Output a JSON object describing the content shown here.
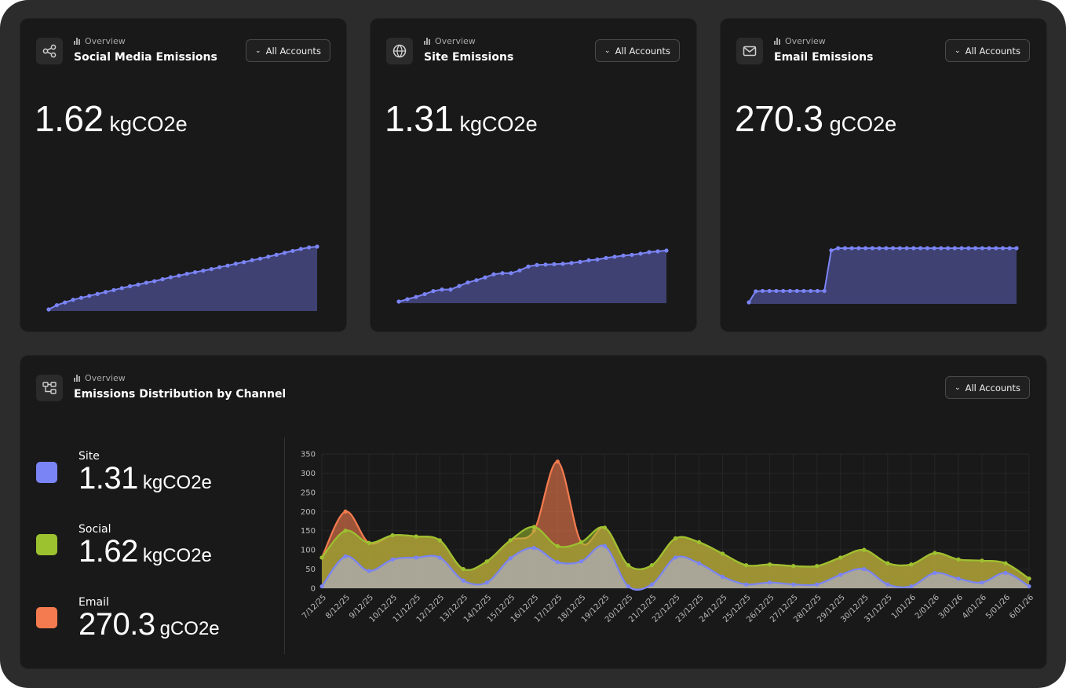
{
  "cards": [
    {
      "id": "social",
      "eyebrow": "Overview",
      "title": "Social Media Emissions",
      "button": "All Accounts",
      "value": "1.62",
      "unit": "kgCO2e",
      "icon": "share-icon",
      "spark": [
        0,
        0.11,
        0.18,
        0.25,
        0.3,
        0.35,
        0.4,
        0.45,
        0.5,
        0.55,
        0.6,
        0.64,
        0.69,
        0.73,
        0.78,
        0.83,
        0.87,
        0.92,
        0.96,
        1.0,
        1.04,
        1.09,
        1.13,
        1.18,
        1.22,
        1.27,
        1.31,
        1.36,
        1.41,
        1.46,
        1.51,
        1.56,
        1.6,
        1.62
      ]
    },
    {
      "id": "site",
      "eyebrow": "Overview",
      "title": "Site Emissions",
      "button": "All Accounts",
      "value": "1.31",
      "unit": "kgCO2e",
      "icon": "globe-icon",
      "spark": [
        0,
        0.06,
        0.12,
        0.19,
        0.27,
        0.31,
        0.31,
        0.4,
        0.49,
        0.55,
        0.62,
        0.7,
        0.73,
        0.73,
        0.8,
        0.9,
        0.94,
        0.95,
        0.96,
        0.97,
        0.99,
        1.02,
        1.06,
        1.08,
        1.12,
        1.15,
        1.18,
        1.2,
        1.23,
        1.27,
        1.29,
        1.31
      ]
    },
    {
      "id": "email",
      "eyebrow": "Overview",
      "title": "Email Emissions",
      "button": "All Accounts",
      "value": "270.3",
      "unit": "gCO2e",
      "icon": "mail-icon",
      "spark": [
        0,
        55,
        57,
        57,
        57,
        57,
        57,
        57,
        57,
        57,
        57,
        57,
        259,
        270,
        270,
        270,
        270,
        270,
        270,
        270,
        270,
        270,
        270,
        270,
        270,
        270,
        270,
        270,
        270,
        270,
        270,
        270,
        270,
        270,
        270,
        270,
        270,
        270,
        270,
        270
      ]
    }
  ],
  "distribution": {
    "eyebrow": "Overview",
    "title": "Emissions Distribution by Channel",
    "button": "All Accounts",
    "icon": "flow-icon",
    "legend": [
      {
        "label": "Site",
        "value": "1.31",
        "unit": "kgCO2e",
        "color": "#7b84f5"
      },
      {
        "label": "Social",
        "value": "1.62",
        "unit": "kgCO2e",
        "color": "#9cc22f"
      },
      {
        "label": "Email",
        "value": "270.3",
        "unit": "gCO2e",
        "color": "#f47b4f"
      }
    ]
  },
  "chart_data": {
    "type": "area",
    "title": "",
    "xlabel": "",
    "ylabel": "",
    "ylim": [
      0,
      350
    ],
    "yticks": [
      0,
      50,
      100,
      150,
      200,
      250,
      300,
      350
    ],
    "categories": [
      "7/12/25",
      "8/12/25",
      "9/12/25",
      "10/12/25",
      "11/12/25",
      "12/12/25",
      "13/12/25",
      "14/12/25",
      "15/12/25",
      "16/12/25",
      "17/12/25",
      "18/12/25",
      "19/12/25",
      "20/12/25",
      "21/12/25",
      "22/12/25",
      "23/12/25",
      "24/12/25",
      "25/12/25",
      "26/12/25",
      "27/12/25",
      "28/12/25",
      "29/12/25",
      "30/12/25",
      "31/12/25",
      "1/01/26",
      "2/01/26",
      "3/01/26",
      "4/01/26",
      "5/01/26",
      "6/01/26"
    ],
    "series": [
      {
        "name": "Site",
        "color": "#7b84f5",
        "values": [
          5,
          83,
          45,
          75,
          80,
          80,
          20,
          15,
          78,
          105,
          68,
          70,
          110,
          5,
          10,
          80,
          65,
          30,
          10,
          15,
          10,
          10,
          35,
          50,
          10,
          5,
          40,
          25,
          15,
          40,
          5
        ]
      },
      {
        "name": "Social",
        "color": "#9cc22f",
        "values": [
          80,
          150,
          118,
          138,
          135,
          125,
          50,
          70,
          125,
          160,
          110,
          120,
          158,
          60,
          60,
          130,
          120,
          90,
          60,
          62,
          58,
          58,
          80,
          100,
          65,
          62,
          92,
          75,
          72,
          65,
          25
        ]
      },
      {
        "name": "Email",
        "color": "#f47b4f",
        "values": [
          80,
          200,
          118,
          138,
          135,
          125,
          50,
          70,
          125,
          150,
          330,
          120,
          158,
          60,
          60,
          130,
          120,
          90,
          60,
          62,
          58,
          58,
          80,
          100,
          65,
          62,
          92,
          75,
          72,
          65,
          25
        ]
      }
    ]
  }
}
